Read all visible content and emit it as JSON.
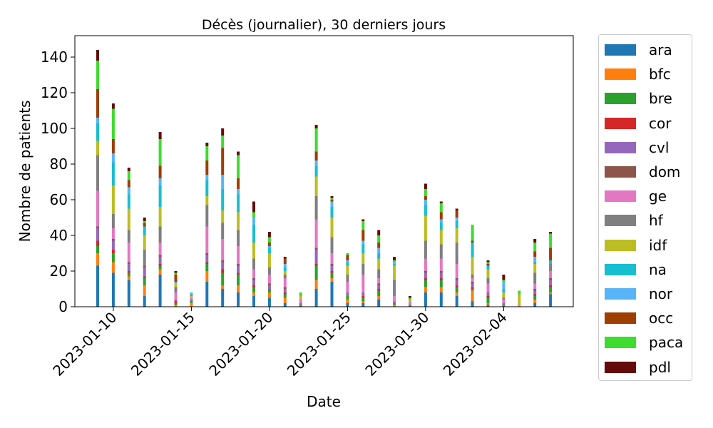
{
  "chart_data": {
    "type": "bar",
    "stacked": true,
    "title": "Décès (journalier), 30 derniers jours",
    "xlabel": "Date",
    "ylabel": "Nombre de patients",
    "ylim": [
      0,
      152
    ],
    "yticks": [
      0,
      20,
      40,
      60,
      80,
      100,
      120,
      140
    ],
    "xticks": [
      "2023-01-10",
      "2023-01-15",
      "2023-01-20",
      "2023-01-25",
      "2023-01-30",
      "2023-02-04"
    ],
    "legend_position": "outside-right",
    "categories": [
      "2023-01-09",
      "2023-01-10",
      "2023-01-11",
      "2023-01-12",
      "2023-01-13",
      "2023-01-14",
      "2023-01-15",
      "2023-01-16",
      "2023-01-17",
      "2023-01-18",
      "2023-01-19",
      "2023-01-20",
      "2023-01-21",
      "2023-01-22",
      "2023-01-23",
      "2023-01-24",
      "2023-01-25",
      "2023-01-26",
      "2023-01-27",
      "2023-01-28",
      "2023-01-29",
      "2023-01-30",
      "2023-01-31",
      "2023-02-01",
      "2023-02-02",
      "2023-02-03",
      "2023-02-04",
      "2023-02-05",
      "2023-02-06",
      "2023-02-07"
    ],
    "series": [
      {
        "name": "ara",
        "color": "#1f77b4",
        "values": [
          23,
          19,
          15,
          6,
          18,
          0,
          0,
          14,
          10,
          8,
          6,
          5,
          2,
          0,
          10,
          14,
          2,
          2,
          4,
          0,
          0,
          8,
          8,
          6,
          3,
          1,
          0,
          0,
          2,
          7
        ]
      },
      {
        "name": "bfc",
        "color": "#ff7f0e",
        "values": [
          7,
          6,
          2,
          6,
          3,
          1,
          2,
          6,
          2,
          4,
          2,
          3,
          3,
          0,
          5,
          2,
          2,
          1,
          2,
          1,
          0,
          3,
          3,
          2,
          6,
          1,
          0,
          0,
          2,
          1
        ]
      },
      {
        "name": "bre",
        "color": "#2ca02c",
        "values": [
          4,
          5,
          2,
          4,
          2,
          1,
          1,
          4,
          7,
          6,
          3,
          2,
          2,
          1,
          8,
          3,
          2,
          2,
          3,
          1,
          1,
          4,
          4,
          3,
          1,
          3,
          1,
          0,
          2,
          3
        ]
      },
      {
        "name": "cor",
        "color": "#d62728",
        "values": [
          3,
          2,
          1,
          1,
          1,
          1,
          0,
          1,
          2,
          1,
          1,
          0,
          1,
          0,
          1,
          1,
          0,
          1,
          1,
          0,
          0,
          1,
          1,
          1,
          1,
          1,
          0,
          0,
          1,
          1
        ]
      },
      {
        "name": "cvl",
        "color": "#9467bd",
        "values": [
          7,
          5,
          4,
          5,
          4,
          1,
          1,
          4,
          4,
          4,
          3,
          2,
          2,
          1,
          8,
          3,
          2,
          2,
          2,
          1,
          0,
          3,
          3,
          3,
          2,
          2,
          1,
          0,
          2,
          3
        ]
      },
      {
        "name": "dom",
        "color": "#8c564b",
        "values": [
          1,
          1,
          1,
          1,
          1,
          0,
          0,
          1,
          1,
          1,
          1,
          1,
          1,
          0,
          1,
          1,
          0,
          0,
          1,
          0,
          0,
          1,
          1,
          1,
          1,
          0,
          0,
          0,
          1,
          1
        ]
      },
      {
        "name": "ge",
        "color": "#e377c2",
        "values": [
          20,
          6,
          11,
          0,
          7,
          4,
          1,
          15,
          12,
          10,
          5,
          5,
          5,
          2,
          16,
          6,
          6,
          10,
          3,
          3,
          2,
          7,
          7,
          8,
          2,
          5,
          2,
          1,
          3,
          4
        ]
      },
      {
        "name": "hf",
        "color": "#7f7f7f",
        "values": [
          20,
          8,
          7,
          9,
          9,
          3,
          0,
          12,
          9,
          9,
          6,
          4,
          2,
          0,
          13,
          9,
          4,
          6,
          5,
          9,
          0,
          10,
          8,
          12,
          2,
          3,
          1,
          0,
          6,
          4
        ]
      },
      {
        "name": "idf",
        "color": "#bcbd22",
        "values": [
          8,
          16,
          12,
          8,
          11,
          2,
          1,
          5,
          7,
          10,
          9,
          8,
          2,
          2,
          11,
          11,
          5,
          6,
          6,
          8,
          1,
          14,
          8,
          8,
          10,
          5,
          3,
          6,
          5,
          0
        ]
      },
      {
        "name": "na",
        "color": "#17becf",
        "values": [
          10,
          13,
          8,
          5,
          12,
          0,
          1,
          9,
          12,
          10,
          10,
          3,
          2,
          0,
          6,
          6,
          2,
          5,
          3,
          1,
          0,
          6,
          4,
          4,
          8,
          2,
          2,
          0,
          1,
          2
        ]
      },
      {
        "name": "nor",
        "color": "#59b4f7",
        "values": [
          3,
          5,
          4,
          0,
          4,
          1,
          1,
          3,
          8,
          3,
          4,
          1,
          2,
          0,
          3,
          3,
          1,
          2,
          3,
          1,
          0,
          3,
          2,
          2,
          0,
          0,
          4,
          0,
          3,
          0
        ]
      },
      {
        "name": "occ",
        "color": "#9e3e00",
        "values": [
          16,
          8,
          4,
          2,
          7,
          4,
          0,
          8,
          15,
          6,
          0,
          2,
          3,
          0,
          5,
          1,
          3,
          6,
          3,
          0,
          0,
          2,
          4,
          4,
          1,
          1,
          0,
          0,
          3,
          7
        ]
      },
      {
        "name": "paca",
        "color": "#3ddc2e",
        "values": [
          16,
          17,
          5,
          1,
          15,
          1,
          0,
          8,
          7,
          13,
          3,
          3,
          0,
          2,
          13,
          1,
          1,
          5,
          4,
          1,
          1,
          4,
          5,
          0,
          9,
          1,
          1,
          2,
          5,
          8
        ]
      },
      {
        "name": "pdl",
        "color": "#640a0a",
        "values": [
          6,
          3,
          2,
          2,
          4,
          1,
          0,
          2,
          4,
          2,
          6,
          3,
          1,
          0,
          2,
          1,
          0,
          1,
          3,
          2,
          1,
          3,
          1,
          1,
          0,
          1,
          3,
          0,
          2,
          1
        ]
      }
    ]
  }
}
